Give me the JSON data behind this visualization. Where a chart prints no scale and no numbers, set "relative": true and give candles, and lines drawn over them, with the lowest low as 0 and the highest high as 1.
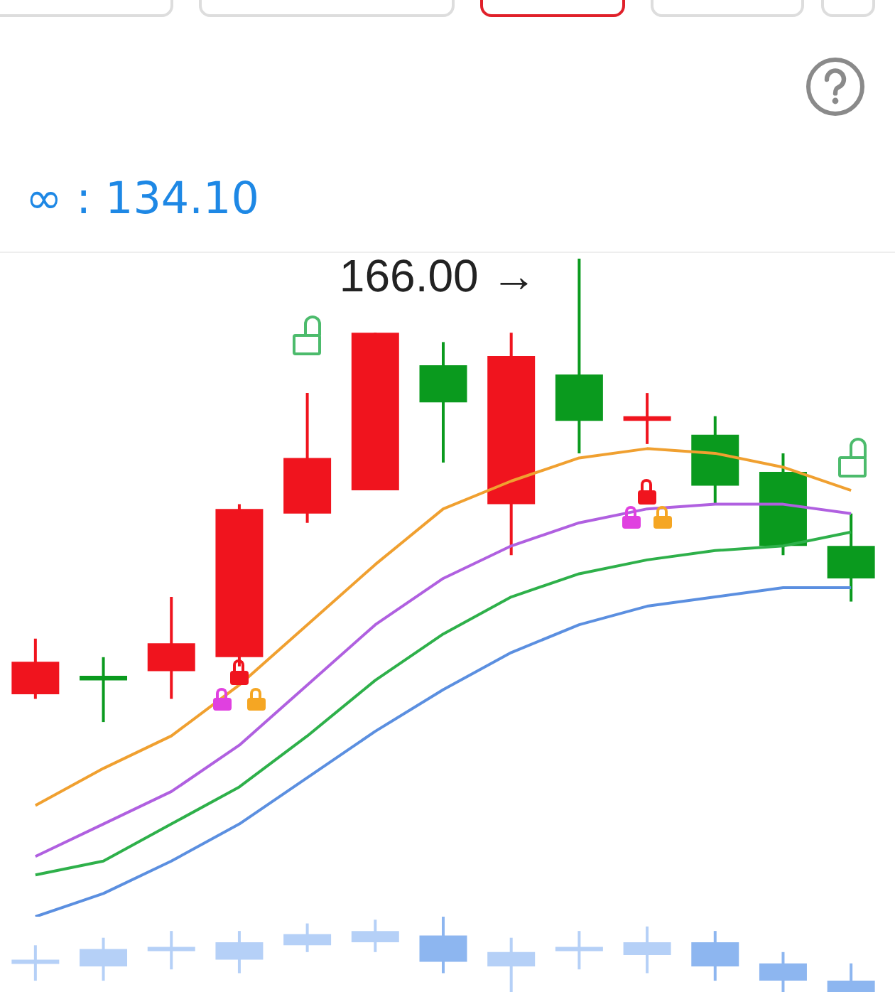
{
  "chart_data": [
    {
      "type": "candlestick",
      "relative": true,
      "marker": "none",
      "categories": [
        null,
        null,
        null,
        null,
        null,
        null,
        null,
        null,
        null,
        null,
        null,
        null,
        null
      ],
      "annotations": [
        "∞ : 134.10",
        "166.00 →"
      ],
      "ohlc": [
        [
          0.06,
          0.18,
          0.05,
          0.13
        ],
        [
          0.1,
          0.14,
          0,
          0.09
        ],
        [
          0.11,
          0.27,
          0.05,
          0.17
        ],
        [
          0.14,
          0.47,
          0.12,
          0.46
        ],
        [
          0.45,
          0.71,
          0.43,
          0.57
        ],
        [
          0.5,
          0.84,
          0.5,
          0.84
        ],
        [
          0.77,
          0.82,
          0.56,
          0.69
        ],
        [
          0.47,
          0.84,
          0.36,
          0.79
        ],
        [
          0.75,
          1,
          0.58,
          0.65
        ],
        [
          0.65,
          0.71,
          0.6,
          0.66
        ],
        [
          0.62,
          0.66,
          0.47,
          0.51
        ],
        [
          0.54,
          0.58,
          0.36,
          0.38
        ],
        [
          0.38,
          0.45,
          0.26,
          0.31
        ]
      ],
      "colors": [
        "#f0141e",
        "#0a9a1e",
        "#f0141e",
        "#f0141e",
        "#f0141e",
        "#f0141e",
        "#0a9a1e",
        "#f0141e",
        "#0a9a1e",
        "#f0141e",
        "#0a9a1e",
        "#0a9a1e",
        "#0a9a1e"
      ],
      "series": [
        {
          "type": "line",
          "color": "#f0a030",
          "values": [
            -0.18,
            -0.1,
            -0.03,
            0.08,
            0.21,
            0.34,
            0.46,
            0.52,
            0.57,
            0.59,
            0.58,
            0.55,
            0.5
          ]
        },
        {
          "type": "line",
          "color": "#b060e0",
          "values": [
            -0.29,
            -0.22,
            -0.15,
            -0.05,
            0.08,
            0.21,
            0.31,
            0.38,
            0.43,
            0.46,
            0.47,
            0.47,
            0.45
          ]
        },
        {
          "type": "line",
          "color": "#2eb04a",
          "values": [
            -0.33,
            -0.3,
            -0.22,
            -0.14,
            -0.03,
            0.09,
            0.19,
            0.27,
            0.32,
            0.35,
            0.37,
            0.38,
            0.41
          ]
        },
        {
          "type": "line",
          "color": "#5b8fe0",
          "values": [
            -0.42,
            -0.37,
            -0.3,
            -0.22,
            -0.12,
            -0.02,
            0.07,
            0.15,
            0.21,
            0.25,
            0.27,
            0.29,
            0.29
          ]
        }
      ]
    },
    {
      "type": "candlestick",
      "relative": true,
      "categories": [
        null,
        null,
        null,
        null,
        null,
        null,
        null,
        null,
        null,
        null,
        null,
        null,
        null
      ],
      "ohlc": [
        [
          0.4,
          0.62,
          0.15,
          0.4
        ],
        [
          0.34,
          0.72,
          0.15,
          0.57
        ],
        [
          0.57,
          0.81,
          0.3,
          0.57
        ],
        [
          0.43,
          0.81,
          0.25,
          0.66
        ],
        [
          0.62,
          0.91,
          0.53,
          0.77
        ],
        [
          0.66,
          0.96,
          0.53,
          0.81
        ],
        [
          0.75,
          1,
          0.25,
          0.4
        ],
        [
          0.34,
          0.72,
          0,
          0.53
        ],
        [
          0.57,
          0.81,
          0.3,
          0.57
        ],
        [
          0.49,
          0.87,
          0.25,
          0.66
        ],
        [
          0.66,
          0.81,
          0.15,
          0.34
        ],
        [
          0.38,
          0.53,
          0,
          0.15
        ],
        [
          0.15,
          0.38,
          0,
          0
        ]
      ],
      "colors": [
        "#b5d0f7",
        "#b5d0f7",
        "#b5d0f7",
        "#b5d0f7",
        "#b5d0f7",
        "#b5d0f7",
        "#8db6f0",
        "#b5d0f7",
        "#b5d0f7",
        "#b5d0f7",
        "#8db6f0",
        "#8db6f0",
        "#8db6f0"
      ]
    }
  ]
}
